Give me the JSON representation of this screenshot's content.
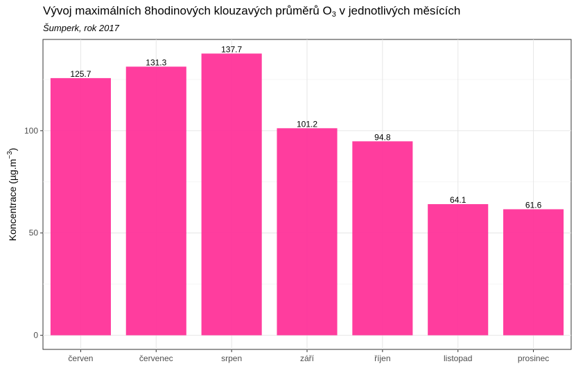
{
  "chart_data": {
    "type": "bar",
    "title_main": "Vývoj maximálních 8hodinových klouzavých průměrů O",
    "title_sub_index": "3",
    "title_tail": " v jednotlivých měsících",
    "subtitle": "Šumperk, rok 2017",
    "ylabel_main": "Koncentrace (µg.m",
    "ylabel_exp": "−3",
    "ylabel_close": ")",
    "categories": [
      "červen",
      "červenec",
      "srpen",
      "září",
      "říjen",
      "listopad",
      "prosinec"
    ],
    "values": [
      125.7,
      131.3,
      137.7,
      101.2,
      94.8,
      64.1,
      61.6
    ],
    "value_labels": [
      "125.7",
      "131.3",
      "137.7",
      "101.2",
      "94.8",
      "64.1",
      "61.6"
    ],
    "yticks": [
      0,
      50,
      100
    ],
    "ylim": [
      -6.9,
      144.6
    ],
    "bar_color": "#FF3399",
    "grid": true,
    "legend": "none"
  }
}
